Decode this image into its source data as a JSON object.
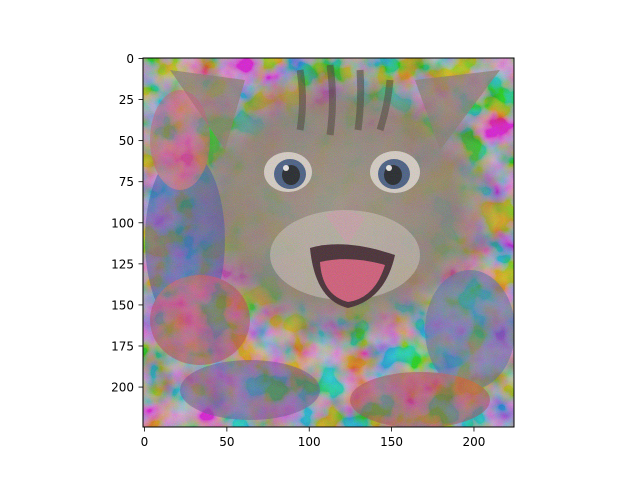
{
  "image": {
    "subject": "cat-face",
    "palette": [
      "#8a7f6e",
      "#c24a78",
      "#3a4fa0",
      "#e8d8c8",
      "#2c2a28",
      "#b8a890"
    ]
  },
  "axes": {
    "x_range": [
      0,
      224
    ],
    "y_range": [
      0,
      224
    ],
    "y_inverted": true,
    "x_ticks": [
      {
        "value": 0,
        "label": "0"
      },
      {
        "value": 50,
        "label": "50"
      },
      {
        "value": 100,
        "label": "100"
      },
      {
        "value": 150,
        "label": "150"
      },
      {
        "value": 200,
        "label": "200"
      }
    ],
    "y_ticks": [
      {
        "value": 0,
        "label": "0"
      },
      {
        "value": 25,
        "label": "25"
      },
      {
        "value": 50,
        "label": "50"
      },
      {
        "value": 75,
        "label": "75"
      },
      {
        "value": 100,
        "label": "100"
      },
      {
        "value": 125,
        "label": "125"
      },
      {
        "value": 150,
        "label": "150"
      },
      {
        "value": 175,
        "label": "175"
      },
      {
        "value": 200,
        "label": "200"
      }
    ]
  }
}
